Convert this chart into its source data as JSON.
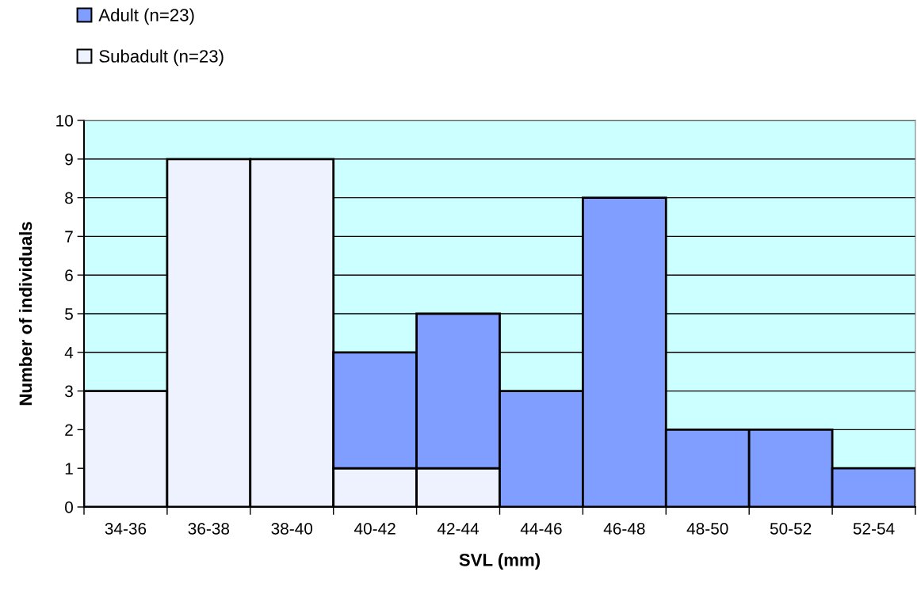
{
  "chart_data": {
    "type": "bar",
    "stacked": true,
    "xlabel": "SVL (mm)",
    "ylabel": "Number of individuals",
    "categories": [
      "34-36",
      "36-38",
      "38-40",
      "40-42",
      "42-44",
      "44-46",
      "46-48",
      "48-50",
      "50-52",
      "52-54"
    ],
    "series": [
      {
        "name": "Subadult (n=23)",
        "color": "#eef2ff",
        "values": [
          3,
          9,
          9,
          1,
          1,
          0,
          0,
          0,
          0,
          0
        ]
      },
      {
        "name": "Adult (n=23)",
        "color": "#809eff",
        "values": [
          0,
          0,
          0,
          3,
          4,
          3,
          8,
          2,
          2,
          1
        ]
      }
    ],
    "ylim": [
      0,
      10
    ],
    "yticks": [
      0,
      1,
      2,
      3,
      4,
      5,
      6,
      7,
      8,
      9,
      10
    ],
    "grid": "y",
    "legend": "top left"
  }
}
